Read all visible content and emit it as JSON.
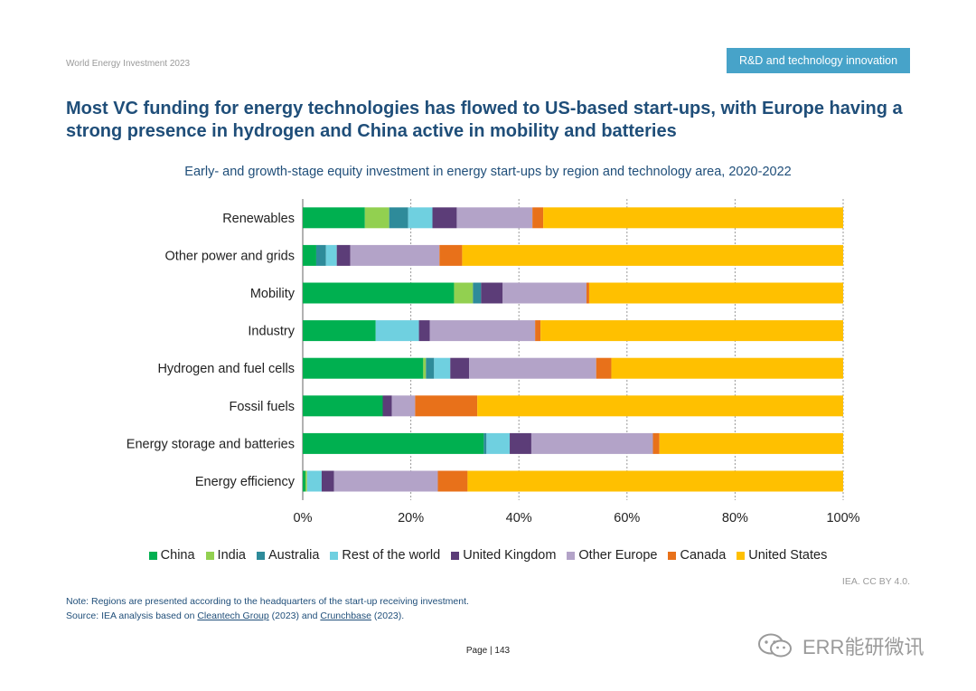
{
  "header": {
    "doc_title": "World Energy Investment 2023",
    "section_tag": "R&D and technology innovation"
  },
  "title": "Most VC funding for energy technologies has flowed to US-based start-ups, with Europe having a strong presence in hydrogen and China active in mobility and batteries",
  "chart_data": {
    "type": "bar",
    "orientation": "horizontal",
    "stacked": "percent",
    "title": "Early- and growth-stage equity investment in energy start-ups by region and technology area, 2020-2022",
    "xlabel": "",
    "ylabel": "",
    "xlim": [
      0,
      100
    ],
    "xticks": [
      "0%",
      "20%",
      "40%",
      "60%",
      "80%",
      "100%"
    ],
    "grid": "vertical dashed",
    "legend_position": "bottom",
    "categories": [
      "Renewables",
      "Other power and grids",
      "Mobility",
      "Industry",
      "Hydrogen and fuel cells",
      "Fossil fuels",
      "Energy storage and batteries",
      "Energy efficiency"
    ],
    "series": [
      {
        "name": "China",
        "color": "#00b050",
        "values": [
          11.5,
          2.5,
          28,
          13.5,
          22.3,
          14.8,
          33.5,
          0.5
        ]
      },
      {
        "name": "India",
        "color": "#92d050",
        "values": [
          4.5,
          0,
          3.5,
          0,
          0.5,
          0,
          0,
          0.3
        ]
      },
      {
        "name": "Australia",
        "color": "#2e8b9a",
        "values": [
          3.5,
          1.8,
          1.5,
          0,
          1.5,
          0,
          0.5,
          0
        ]
      },
      {
        "name": "Rest of the world",
        "color": "#6fd0e0",
        "values": [
          4.5,
          2,
          0,
          8,
          3,
          0,
          4.3,
          2.7
        ]
      },
      {
        "name": "United Kingdom",
        "color": "#5c3d78",
        "values": [
          4.5,
          2.5,
          4,
          2,
          3.5,
          1.7,
          4,
          2.3
        ]
      },
      {
        "name": "Other Europe",
        "color": "#b3a3c8",
        "values": [
          14,
          16.5,
          15.5,
          19.5,
          23.5,
          4.3,
          22.5,
          19.2
        ]
      },
      {
        "name": "Canada",
        "color": "#e8711a",
        "values": [
          2,
          4.2,
          0.5,
          1,
          2.8,
          11.5,
          1.2,
          5.5
        ]
      },
      {
        "name": "United States",
        "color": "#ffc000",
        "values": [
          55.5,
          70.5,
          47,
          56,
          42.9,
          67.7,
          34,
          69.5
        ]
      }
    ]
  },
  "credit": "IEA. CC BY 4.0.",
  "note": {
    "line1": "Note: Regions are presented according to the headquarters of the start-up receiving investment.",
    "source_prefix": "Source: IEA analysis based on ",
    "link1": "Cleantech Group",
    "mid1": " (2023) and ",
    "link2": "Crunchbase",
    "suffix": " (2023)."
  },
  "footer": {
    "page_label": "Page | 143"
  },
  "watermark": {
    "text": "ERR能研微讯",
    "icon": "wechat-icon"
  }
}
